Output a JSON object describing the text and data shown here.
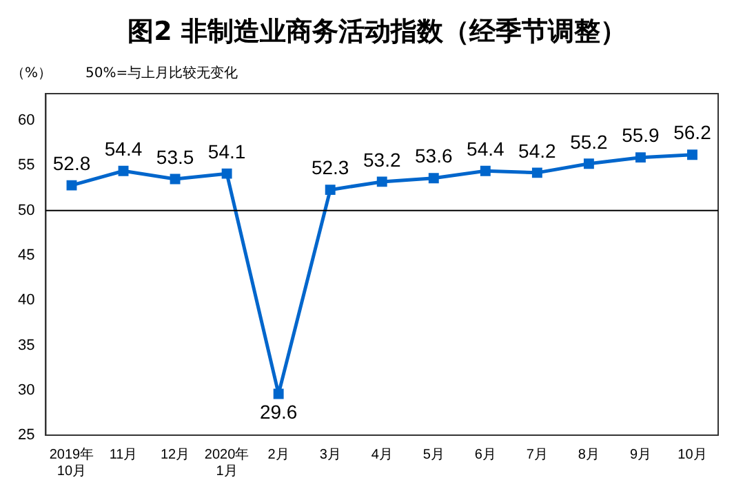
{
  "chart_data": {
    "type": "line",
    "title": "图2  非制造业商务活动指数（经季节调整）",
    "ylabel": "（%）",
    "annotations": [
      "50%=与上月比较无变化"
    ],
    "categories": [
      "2019年\n10月",
      "11月",
      "12月",
      "2020年\n1月",
      "2月",
      "3月",
      "4月",
      "5月",
      "6月",
      "7月",
      "8月",
      "9月",
      "10月"
    ],
    "series": [
      {
        "color": "#0066cc",
        "values": [
          52.8,
          54.4,
          53.5,
          54.1,
          29.6,
          52.3,
          53.2,
          53.6,
          54.4,
          54.2,
          55.2,
          55.9,
          56.2
        ]
      }
    ],
    "ylim": [
      25,
      63
    ],
    "yticks": [
      25,
      30,
      35,
      40,
      45,
      50,
      55,
      60
    ],
    "ref_lines": [
      {
        "axis": "y",
        "value": 50,
        "color": "#000000"
      }
    ],
    "grid": false,
    "legend": false,
    "marker": "square",
    "line_style": "solid",
    "data_labels": true
  }
}
